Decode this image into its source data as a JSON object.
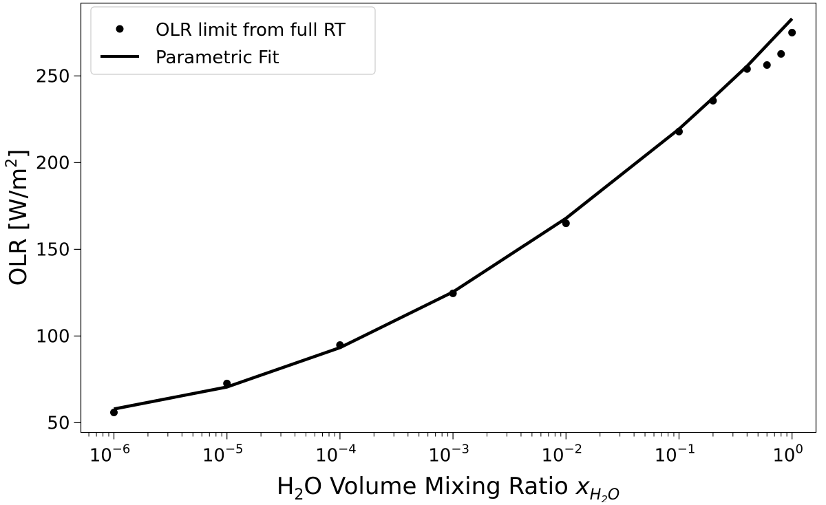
{
  "chart_data": {
    "type": "line",
    "xscale": "log",
    "xlabel_main": "H",
    "xlabel_sub": "2",
    "xlabel_rest": "O Volume Mixing Ratio ",
    "xlabel_var": "x",
    "xlabel_var_sub": "H",
    "xlabel_var_sub2": "2",
    "xlabel_var_sub3": "O",
    "ylabel": "OLR [W/m",
    "ylabel_sup": "2",
    "ylabel_end": "]",
    "xlim": [
      5.1e-07,
      1.63
    ],
    "ylim": [
      44.4,
      292
    ],
    "x_ticks": [
      {
        "base": "10",
        "exp": "−6",
        "value": 1e-06
      },
      {
        "base": "10",
        "exp": "−5",
        "value": 1e-05
      },
      {
        "base": "10",
        "exp": "−4",
        "value": 0.0001
      },
      {
        "base": "10",
        "exp": "−3",
        "value": 0.001
      },
      {
        "base": "10",
        "exp": "−2",
        "value": 0.01
      },
      {
        "base": "10",
        "exp": "−1",
        "value": 0.1
      },
      {
        "base": "10",
        "exp": "0",
        "value": 1
      }
    ],
    "y_ticks": [
      "50",
      "100",
      "150",
      "200",
      "250"
    ],
    "grid": false,
    "legend_position": "top-left",
    "series": [
      {
        "name": "OLR limit from full RT",
        "style": "scatter",
        "color": "#000000",
        "x": [
          1e-06,
          1e-05,
          0.0001,
          0.001,
          0.01,
          0.1,
          0.2,
          0.4,
          0.6,
          0.8,
          1.0
        ],
        "y": [
          55.9,
          72.6,
          94.8,
          124.6,
          165.0,
          217.9,
          235.7,
          254.0,
          256.3,
          262.7,
          275.0
        ]
      },
      {
        "name": "Parametric Fit",
        "style": "line",
        "color": "#000000",
        "x": [
          1e-06,
          1e-05,
          0.0001,
          0.001,
          0.01,
          0.1,
          0.2,
          0.4,
          0.6,
          0.8,
          1.0
        ],
        "y": [
          57.9,
          70.6,
          93.3,
          125.4,
          167.9,
          219.4,
          237.3,
          255.6,
          267.7,
          276.3,
          283.0
        ]
      }
    ]
  }
}
